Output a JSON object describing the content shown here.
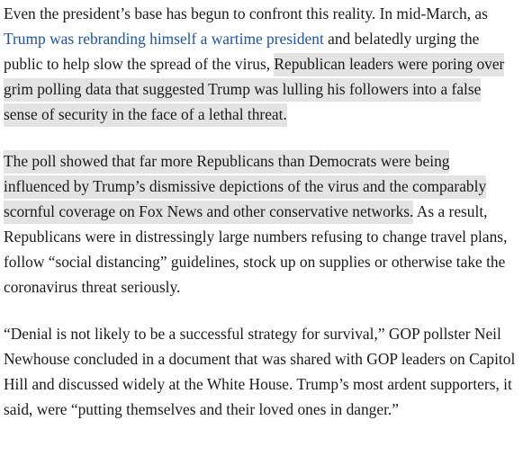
{
  "article": {
    "p1": {
      "before_link": "Even the president’s base has begun to confront this reality. In mid-March, as ",
      "link": "Trump was rebranding himself a wartime president",
      "after_link": " and belatedly urging the public to help slow the spread of the virus, ",
      "highlighted": "Republican leaders were poring over grim polling data that suggested Trump was lulling his followers into a false sense of security in the face of a lethal threat."
    },
    "p2": {
      "highlighted": "The poll showed that far more Republicans than Democrats were being influenced by Trump’s dismissive depictions of the virus and the comparably scornful coverage on Fox News and other conservative networks.",
      "rest": " As a result, Republicans were in distressingly large numbers refusing to change travel plans, follow “social distancing” guidelines, stock up on supplies or otherwise take the coronavirus threat seriously."
    },
    "p3": {
      "text": "“Denial is not likely to be a successful strategy for survival,” GOP pollster Neil Newhouse concluded in a document that was shared with GOP leaders on Capitol Hill and discussed widely at the White House. Trump’s most ardent supporters, it said, were “putting themselves and their loved ones in danger.”"
    }
  },
  "colors": {
    "text": "#1a1a1a",
    "link": "#1a55a5",
    "highlight": "#e3e3e3"
  }
}
